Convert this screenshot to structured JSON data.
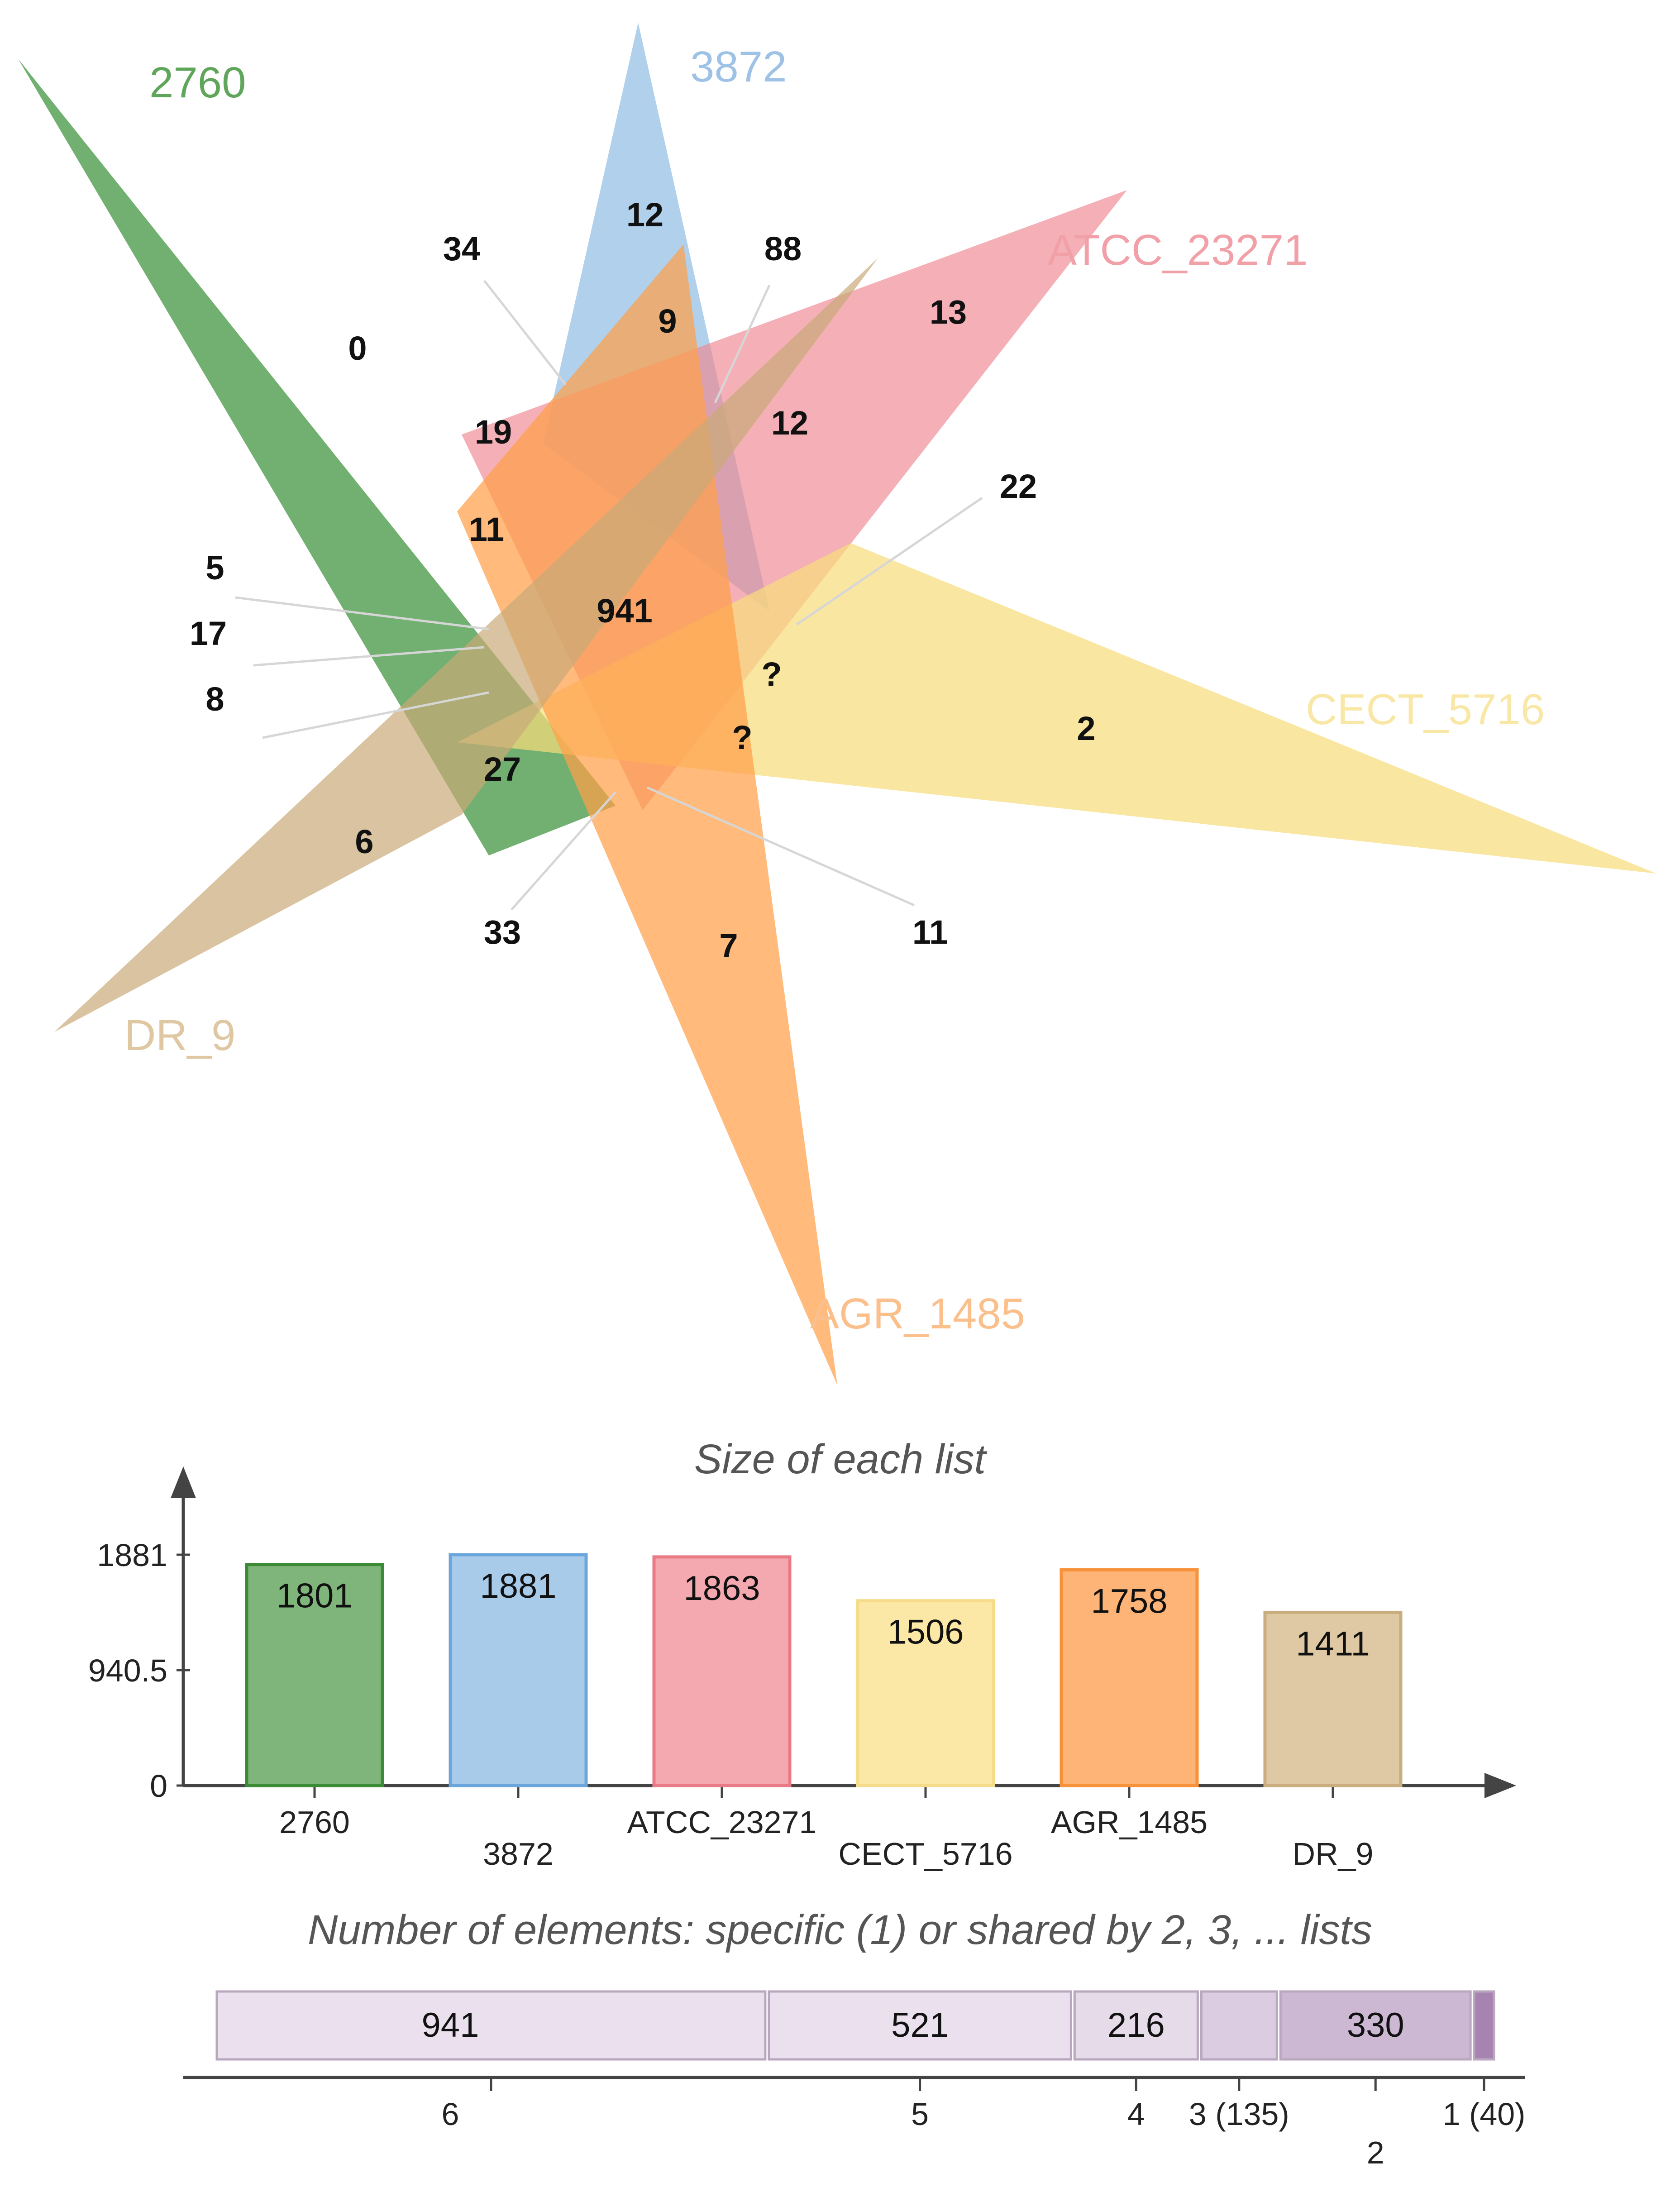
{
  "chart_data": [
    {
      "type": "venn",
      "sets": [
        {
          "name": "2760",
          "color": "#2e8b2e"
        },
        {
          "name": "3872",
          "color": "#7fb3e0"
        },
        {
          "name": "ATCC_23271",
          "color": "#ef8590"
        },
        {
          "name": "CECT_5716",
          "color": "#f7dc7c"
        },
        {
          "name": "AGR_1485",
          "color": "#ff9f4a"
        },
        {
          "name": "DR_9",
          "color": "#c9a977"
        }
      ],
      "region_labels": [
        "0",
        "12",
        "13",
        "2",
        "7",
        "6",
        "34",
        "88",
        "9",
        "19",
        "12",
        "11",
        "22",
        "941",
        "5",
        "17",
        "8",
        "?",
        "?",
        "27",
        "33",
        "11"
      ]
    },
    {
      "type": "bar",
      "title": "Size of each list",
      "categories": [
        "2760",
        "3872",
        "ATCC_23271",
        "CECT_5716",
        "AGR_1485",
        "DR_9"
      ],
      "values": [
        1801,
        1881,
        1863,
        1506,
        1758,
        1411
      ],
      "colors": [
        "#7fb57a",
        "#a8cbe9",
        "#f4a9b0",
        "#fbe8a6",
        "#fdb476",
        "#dfc9a4"
      ],
      "border_colors": [
        "#3a8a36",
        "#6aa6dc",
        "#ea7b86",
        "#f6dc8a",
        "#f7913a",
        "#c9ad7f"
      ],
      "yticks": [
        "0",
        "940.5",
        "1881"
      ],
      "ylim": [
        0,
        1881
      ]
    },
    {
      "type": "bar",
      "title": "Number of elements: specific (1) or shared by 2, 3, ... lists",
      "segments": [
        {
          "label": "6",
          "value": 941,
          "shown": "941",
          "color": "#ebe1ee"
        },
        {
          "label": "5",
          "value": 521,
          "shown": "521",
          "color": "#ebe1ee"
        },
        {
          "label": "4",
          "value": 216,
          "shown": "216",
          "color": "#e6dbe9"
        },
        {
          "label": "3 (135)",
          "value": 135,
          "shown": "",
          "color": "#dccce1"
        },
        {
          "label": "2",
          "value": 330,
          "shown": "330",
          "color": "#cdb8d4"
        },
        {
          "label": "1 (40)",
          "value": 40,
          "shown": "",
          "color": "#a783b2"
        }
      ]
    }
  ]
}
